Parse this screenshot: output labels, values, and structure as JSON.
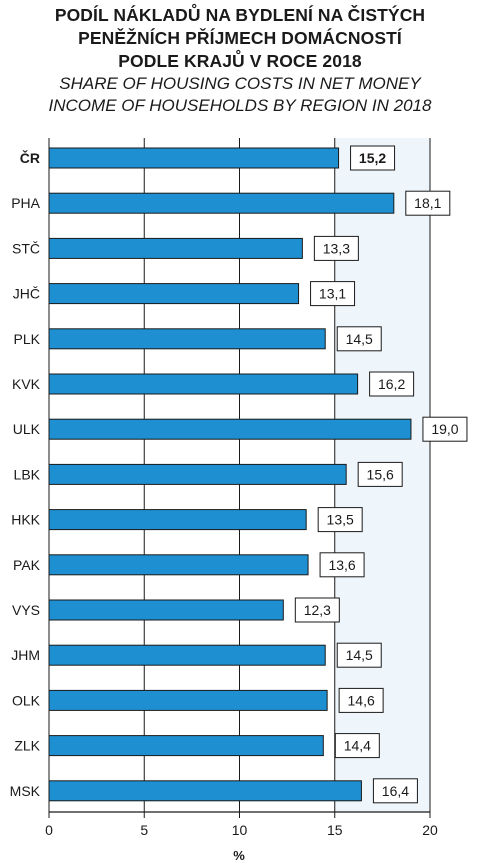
{
  "chart_data": {
    "type": "bar",
    "orientation": "horizontal",
    "title": "PODÍL NÁKLADŮ NA BYDLENÍ NA ČISTÝCH PENĚŽNÍCH PŘÍJMECH DOMÁCNOSTÍ PODLE KRAJŮ V ROCE 2018",
    "title_lines": [
      "PODÍL NÁKLADŮ NA BYDLENÍ NA ČISTÝCH",
      "PENĚŽNÍCH PŘÍJMECH DOMÁCNOSTÍ",
      "PODLE KRAJŮ V ROCE 2018"
    ],
    "subtitle": "SHARE OF HOUSING COSTS IN NET MONEY INCOME OF HOUSEHOLDS BY REGION IN 2018",
    "subtitle_lines": [
      "SHARE OF HOUSING COSTS IN NET MONEY",
      "INCOME OF HOUSEHOLDS BY REGION IN 2018"
    ],
    "categories": [
      "ČR",
      "PHA",
      "STČ",
      "JHČ",
      "PLK",
      "KVK",
      "ULK",
      "LBK",
      "HKK",
      "PAK",
      "VYS",
      "JHM",
      "OLK",
      "ZLK",
      "MSK"
    ],
    "values": [
      15.2,
      18.1,
      13.3,
      13.1,
      14.5,
      16.2,
      19.0,
      15.6,
      13.5,
      13.6,
      12.3,
      14.5,
      14.6,
      14.4,
      16.4
    ],
    "value_labels": [
      "15,2",
      "18,1",
      "13,3",
      "13,1",
      "14,5",
      "16,2",
      "19,0",
      "15,6",
      "13,5",
      "13,6",
      "12,3",
      "14,5",
      "14,6",
      "14,4",
      "16,4"
    ],
    "highlight_index": 0,
    "xlabel": "%",
    "xlim": [
      0,
      20
    ],
    "xticks": [
      0,
      5,
      10,
      15,
      20
    ],
    "xtick_labels": [
      "0",
      "5",
      "10",
      "15",
      "20"
    ],
    "grid": true,
    "shaded_band": [
      15,
      20
    ],
    "colors": {
      "bar": "#1e8fd0",
      "bar_edge": "#1a1a1a",
      "band": "#eef5fb",
      "grid": "#1a1a1a"
    }
  }
}
